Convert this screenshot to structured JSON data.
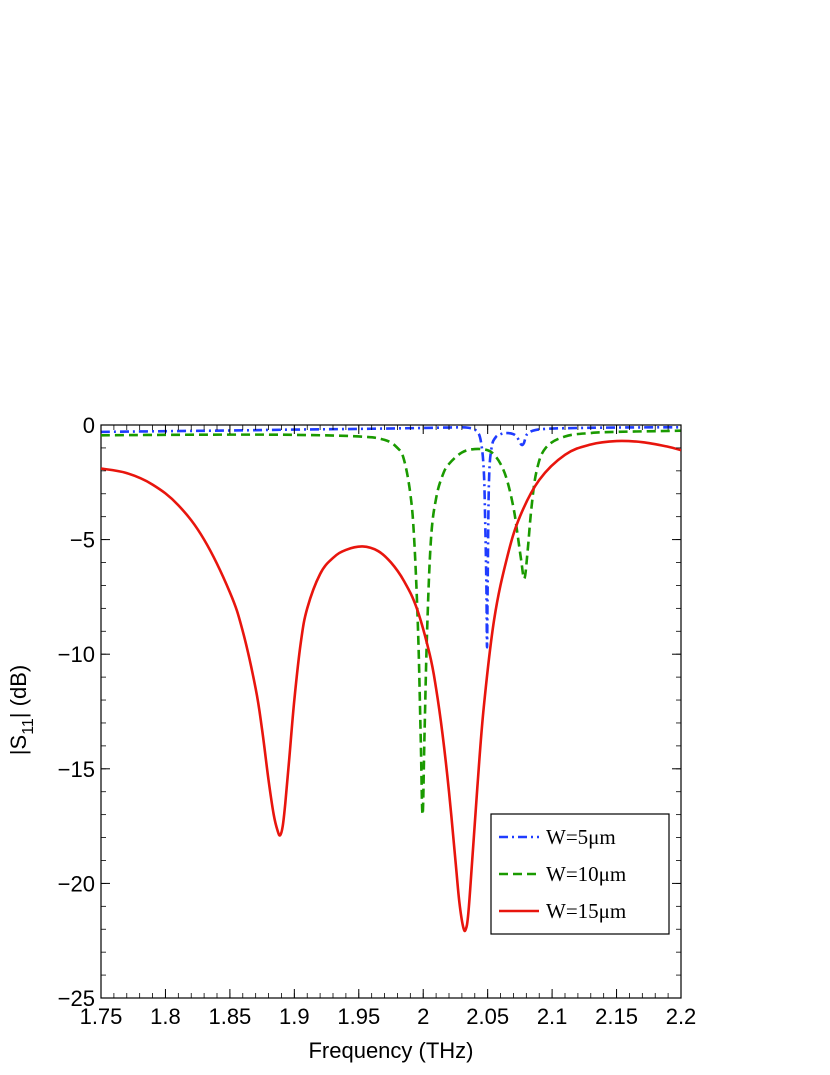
{
  "chart_data": {
    "type": "line",
    "title": "",
    "xlabel": "Frequency (THz)",
    "ylabel": {
      "prefix": "|S",
      "sub": "11",
      "suffix": "| (dB)"
    },
    "xlim": [
      1.75,
      2.2
    ],
    "ylim": [
      -25,
      0
    ],
    "xticks": [
      "1.75",
      "1.8",
      "1.85",
      "1.9",
      "1.95",
      "2",
      "2.05",
      "2.1",
      "2.15",
      "2.2"
    ],
    "yticks": [
      "0",
      "-5",
      "-10",
      "-15",
      "-20",
      "-25"
    ],
    "grid": false,
    "legend_position": "bottom-right",
    "series": [
      {
        "name": "W=5μm",
        "color": "#1f3cff",
        "style": "dash-dot",
        "x": [
          1.75,
          1.8,
          1.85,
          1.9,
          1.95,
          2.0,
          2.02,
          2.035,
          2.042,
          2.045,
          2.047,
          2.048,
          2.049,
          2.0495,
          2.05,
          2.051,
          2.053,
          2.056,
          2.06,
          2.065,
          2.07,
          2.073,
          2.076,
          2.078,
          2.08,
          2.083,
          2.087,
          2.095,
          2.11,
          2.15,
          2.2
        ],
        "y": [
          -0.3,
          -0.27,
          -0.24,
          -0.2,
          -0.17,
          -0.13,
          -0.11,
          -0.12,
          -0.3,
          -0.8,
          -2.0,
          -4.0,
          -7.0,
          -9.7,
          -7.0,
          -2.5,
          -1.0,
          -0.55,
          -0.4,
          -0.35,
          -0.4,
          -0.55,
          -0.85,
          -0.8,
          -0.45,
          -0.3,
          -0.22,
          -0.17,
          -0.14,
          -0.11,
          -0.1
        ]
      },
      {
        "name": "W=10μm",
        "color": "#1a9a00",
        "style": "dashed",
        "x": [
          1.75,
          1.8,
          1.85,
          1.9,
          1.95,
          1.97,
          1.98,
          1.985,
          1.99,
          1.993,
          1.996,
          1.998,
          1.9995,
          2.001,
          2.003,
          2.006,
          2.01,
          2.015,
          2.02,
          2.03,
          2.04,
          2.05,
          2.055,
          2.06,
          2.065,
          2.07,
          2.073,
          2.076,
          2.0785,
          2.081,
          2.084,
          2.088,
          2.095,
          2.11,
          2.13,
          2.15,
          2.2
        ],
        "y": [
          -0.45,
          -0.43,
          -0.42,
          -0.43,
          -0.5,
          -0.65,
          -1.0,
          -1.5,
          -3.0,
          -5.0,
          -9.0,
          -13.5,
          -17.0,
          -13.5,
          -9.0,
          -5.0,
          -3.2,
          -2.2,
          -1.7,
          -1.2,
          -1.05,
          -1.1,
          -1.3,
          -1.7,
          -2.4,
          -3.6,
          -4.7,
          -5.9,
          -6.7,
          -5.5,
          -3.6,
          -2.0,
          -1.0,
          -0.5,
          -0.35,
          -0.3,
          -0.25
        ]
      },
      {
        "name": "W=15μm",
        "color": "#e8150d",
        "style": "solid",
        "x": [
          1.75,
          1.77,
          1.79,
          1.81,
          1.83,
          1.85,
          1.86,
          1.87,
          1.875,
          1.88,
          1.884,
          1.887,
          1.889,
          1.891,
          1.893,
          1.896,
          1.9,
          1.905,
          1.91,
          1.92,
          1.93,
          1.94,
          1.953,
          1.965,
          1.975,
          1.985,
          1.995,
          2.005,
          2.01,
          2.015,
          2.02,
          2.025,
          2.028,
          2.031,
          2.033,
          2.035,
          2.038,
          2.042,
          2.047,
          2.055,
          2.065,
          2.075,
          2.09,
          2.11,
          2.13,
          2.15,
          2.17,
          2.19,
          2.2
        ],
        "y": [
          -1.9,
          -2.1,
          -2.6,
          -3.5,
          -5.0,
          -7.3,
          -9.0,
          -11.5,
          -13.3,
          -15.5,
          -17.0,
          -17.7,
          -17.9,
          -17.5,
          -16.5,
          -14.6,
          -12.0,
          -9.5,
          -8.0,
          -6.5,
          -5.8,
          -5.45,
          -5.3,
          -5.5,
          -6.0,
          -6.8,
          -8.0,
          -10.0,
          -11.5,
          -13.5,
          -16.0,
          -19.0,
          -20.8,
          -21.9,
          -22.0,
          -21.3,
          -19.0,
          -15.8,
          -12.3,
          -8.5,
          -5.8,
          -4.0,
          -2.4,
          -1.3,
          -0.85,
          -0.7,
          -0.75,
          -0.95,
          -1.1
        ]
      }
    ]
  }
}
